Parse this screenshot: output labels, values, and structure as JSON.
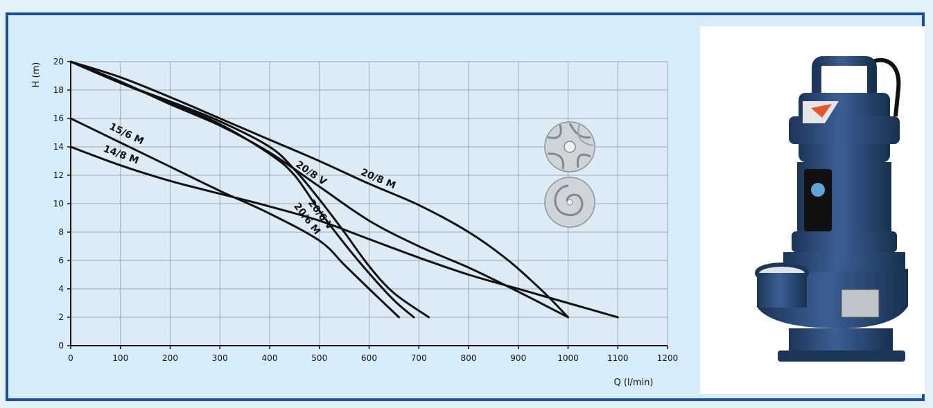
{
  "chart_data": {
    "type": "line",
    "xlabel": "Q (l/min)",
    "ylabel": "H (m)",
    "xlim": [
      0,
      1200
    ],
    "ylim": [
      0,
      20
    ],
    "x_ticks": [
      0,
      100,
      200,
      300,
      400,
      500,
      600,
      700,
      800,
      900,
      1000,
      1100,
      1200
    ],
    "y_ticks": [
      0,
      2,
      4,
      6,
      8,
      10,
      12,
      14,
      16,
      18,
      20
    ],
    "grid": true,
    "series": [
      {
        "name": "15/6 M",
        "x": [
          0,
          100,
          200,
          300,
          400,
          500,
          550,
          600,
          660
        ],
        "y": [
          16,
          14.3,
          12.6,
          10.9,
          9.3,
          7.4,
          5.7,
          4.0,
          2
        ]
      },
      {
        "name": "14/8 M",
        "x": [
          0,
          100,
          200,
          300,
          400,
          500,
          600,
          700,
          800,
          900,
          1000,
          1100
        ],
        "y": [
          14,
          12.7,
          11.6,
          10.7,
          9.8,
          8.8,
          7.5,
          6.2,
          5.0,
          4.0,
          3.0,
          2
        ]
      },
      {
        "name": "20/6 M",
        "x": [
          0,
          100,
          200,
          300,
          400,
          450,
          500,
          550,
          600,
          650,
          690
        ],
        "y": [
          20,
          18.5,
          17.1,
          15.6,
          13.5,
          12.0,
          9.5,
          7.2,
          5.1,
          3.2,
          2
        ]
      },
      {
        "name": "20/6 V",
        "x": [
          0,
          100,
          200,
          300,
          400,
          450,
          500,
          550,
          600,
          650,
          720
        ],
        "y": [
          20,
          18.5,
          17.2,
          15.8,
          14.0,
          12.4,
          10.3,
          8.0,
          5.6,
          3.7,
          2
        ]
      },
      {
        "name": "20/8 V",
        "x": [
          0,
          100,
          200,
          300,
          400,
          500,
          600,
          700,
          800,
          900,
          1000
        ],
        "y": [
          20,
          18.6,
          17.0,
          15.5,
          13.6,
          11.2,
          8.8,
          7.0,
          5.5,
          3.8,
          2
        ]
      },
      {
        "name": "20/8 M",
        "x": [
          0,
          100,
          200,
          300,
          400,
          500,
          600,
          700,
          800,
          880,
          950,
          1000
        ],
        "y": [
          20,
          18.9,
          17.5,
          16.0,
          14.5,
          13.0,
          11.4,
          9.9,
          8.0,
          6.0,
          3.8,
          2
        ]
      }
    ],
    "curve_labels": [
      {
        "text": "15/6 M",
        "series": "15/6 M"
      },
      {
        "text": "14/8 M",
        "series": "14/8 M"
      },
      {
        "text": "20/6 M",
        "series": "20/6 M"
      },
      {
        "text": "20/6 V",
        "series": "20/6 V"
      },
      {
        "text": "20/8 V",
        "series": "20/8 V"
      },
      {
        "text": "20/8 M",
        "series": "20/8 M"
      }
    ]
  },
  "images": {
    "impeller_top": "vortex-impeller-icon",
    "impeller_bottom": "channel-impeller-icon",
    "product": "submersible-pump-photo"
  },
  "colors": {
    "frame_border": "#1d4e93",
    "chart_background": "#d6ecf8",
    "curve": "#111111",
    "pump_body": "#2a4a78"
  }
}
